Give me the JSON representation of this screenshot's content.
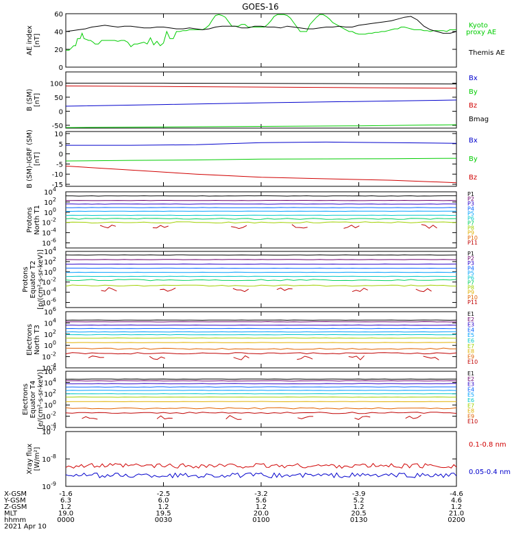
{
  "title": "GOES-16",
  "colors": {
    "black": "#000000",
    "red": "#d00000",
    "green": "#00cc00",
    "blue": "#0000cc",
    "p_channels": [
      "#000000",
      "#6b006b",
      "#2a00c8",
      "#0060ff",
      "#00a0ff",
      "#00c8c8",
      "#00d060",
      "#a0d000",
      "#e0b000",
      "#e06000",
      "#c00000"
    ],
    "e_channels": [
      "#000000",
      "#6b006b",
      "#2a00c8",
      "#0060ff",
      "#00a0ff",
      "#00c8c8",
      "#a0d000",
      "#e0b000",
      "#e06000",
      "#c00000"
    ]
  },
  "ephemeris": {
    "rows": [
      {
        "label": "X-GSM",
        "values": [
          "-1.6",
          "-2.5",
          "-3.2",
          "-3.9",
          "-4.6"
        ]
      },
      {
        "label": "Y-GSM",
        "values": [
          "6.3",
          "6.0",
          "5.6",
          "5.2",
          "4.6"
        ]
      },
      {
        "label": "Z-GSM",
        "values": [
          "1.2",
          "1.2",
          "1.2",
          "1.2",
          "1.2"
        ]
      },
      {
        "label": "MLT",
        "values": [
          "19.0",
          "19.5",
          "20.0",
          "20.5",
          "21.0"
        ]
      },
      {
        "label": "hhmm",
        "values": [
          "0000",
          "0030",
          "0100",
          "0130",
          "0200"
        ]
      }
    ],
    "date": "2021 Apr 10"
  },
  "chart_data": [
    {
      "type": "line",
      "ylabel": [
        "AE index",
        "[nT]"
      ],
      "ylim": [
        0,
        60
      ],
      "yticks": [
        "0",
        "20",
        "40",
        "60"
      ],
      "series": [
        {
          "name": "Kyoto\nproxy AE",
          "color": "green",
          "x": [
            0,
            5,
            8,
            12,
            15,
            18,
            22,
            25,
            28,
            32,
            35,
            38,
            42,
            45,
            50,
            55,
            58,
            62,
            65,
            70,
            75,
            80,
            85,
            90,
            95,
            100,
            105,
            110,
            115,
            120,
            125,
            130,
            135,
            140,
            145,
            150,
            155,
            160,
            165,
            170,
            175,
            180,
            185,
            190,
            195,
            200,
            205,
            210,
            215,
            220,
            225,
            230,
            235,
            240,
            245,
            250,
            255,
            260,
            265,
            270,
            275,
            280,
            285,
            290,
            295,
            300,
            305,
            310,
            315,
            320,
            325,
            330,
            335,
            340,
            345,
            350,
            355,
            360,
            365,
            370,
            375,
            380,
            385,
            390,
            395,
            400,
            405,
            410,
            415,
            420,
            425,
            430,
            435,
            440,
            445,
            450,
            455,
            460,
            465,
            470,
            475,
            480,
            485,
            490,
            495,
            500,
            505,
            510,
            515,
            520,
            525,
            530,
            535,
            540,
            545,
            550,
            555,
            560,
            565,
            570,
            575,
            580,
            585,
            590,
            595,
            600
          ],
          "y": [
            19,
            19,
            21,
            24,
            24,
            32,
            32,
            38,
            32,
            31,
            30,
            30,
            28,
            26,
            26,
            30,
            30,
            30,
            30,
            30,
            30,
            29,
            30,
            30,
            28,
            23,
            26,
            26,
            27,
            28,
            26,
            33,
            25,
            29,
            24,
            27,
            40,
            32,
            32,
            40,
            40,
            41,
            41,
            42,
            42,
            42,
            42,
            42,
            44,
            47,
            53,
            58,
            59,
            58,
            56,
            51,
            46,
            46,
            46,
            48,
            48,
            45,
            45,
            45,
            45,
            45,
            45,
            48,
            52,
            57,
            59,
            59,
            59,
            58,
            55,
            50,
            45,
            40,
            40,
            40,
            48,
            52,
            56,
            59,
            59,
            57,
            54,
            50,
            48,
            46,
            44,
            42,
            40,
            40,
            38,
            37,
            37,
            37,
            38,
            38,
            39,
            39,
            40,
            40,
            41,
            42,
            43,
            43,
            45,
            45,
            44,
            43,
            42,
            42,
            42,
            41,
            41,
            40,
            41,
            41,
            41,
            41,
            40,
            42,
            42,
            42
          ]
        },
        {
          "name": "Themis AE",
          "color": "black",
          "x": [
            0,
            10,
            20,
            30,
            40,
            50,
            60,
            70,
            80,
            90,
            100,
            110,
            120,
            130,
            140,
            150,
            160,
            170,
            180,
            190,
            200,
            210,
            220,
            230,
            240,
            250,
            260,
            270,
            280,
            290,
            300,
            310,
            320,
            330,
            340,
            350,
            360,
            370,
            380,
            390,
            400,
            410,
            420,
            430,
            440,
            450,
            460,
            470,
            480,
            490,
            500,
            510,
            520,
            530,
            540,
            550,
            560,
            570,
            580,
            590,
            600
          ],
          "y": [
            40,
            41,
            42,
            43,
            45,
            46,
            47,
            46,
            45,
            46,
            46,
            45,
            44,
            44,
            45,
            45,
            44,
            43,
            43,
            44,
            43,
            42,
            43,
            45,
            46,
            46,
            46,
            44,
            44,
            46,
            46,
            45,
            45,
            44,
            46,
            45,
            44,
            43,
            43,
            44,
            45,
            45,
            46,
            45,
            45,
            47,
            48,
            49,
            50,
            51,
            52,
            54,
            56,
            57,
            53,
            46,
            42,
            40,
            38,
            38,
            40
          ]
        }
      ],
      "legend": [
        "Kyoto\nproxy AE",
        "Themis AE"
      ]
    },
    {
      "type": "line",
      "ylabel": [
        "B (SM)",
        "[nT]"
      ],
      "ylim": [
        -60,
        140
      ],
      "yticks": [
        "-50",
        "0",
        "50",
        "100"
      ],
      "series": [
        {
          "name": "Bmag",
          "color": "black",
          "x": [
            0,
            150,
            300,
            450,
            600
          ],
          "y": [
            100,
            100,
            99,
            98,
            97
          ]
        },
        {
          "name": "By",
          "color": "red",
          "x": [
            0,
            150,
            300,
            450,
            600
          ],
          "y": [
            90,
            88,
            86,
            84,
            82
          ]
        },
        {
          "name": "Bz",
          "color": "blue",
          "x": [
            0,
            150,
            300,
            450,
            600
          ],
          "y": [
            18,
            24,
            30,
            35,
            40
          ]
        },
        {
          "name": "Bx",
          "color": "green",
          "x": [
            0,
            150,
            300,
            450,
            600
          ],
          "y": [
            -58,
            -56,
            -54,
            -52,
            -48
          ]
        }
      ],
      "legend": [
        "Bx",
        "By",
        "Bz",
        "Bmag"
      ]
    },
    {
      "type": "line",
      "ylabel": [
        "B (SM)-IGRF (SM)",
        "[nT]"
      ],
      "ylim": [
        -16,
        11
      ],
      "yticks": [
        "-15",
        "-10",
        "-5",
        "0",
        "5",
        "10"
      ],
      "series": [
        {
          "name": "Bx",
          "color": "blue",
          "x": [
            0,
            100,
            200,
            300,
            400,
            500,
            600
          ],
          "y": [
            4.2,
            4.2,
            4.5,
            5.5,
            5.8,
            5.5,
            5.2
          ]
        },
        {
          "name": "By",
          "color": "green",
          "x": [
            0,
            100,
            200,
            300,
            400,
            500,
            600
          ],
          "y": [
            -3.5,
            -3.2,
            -3.0,
            -2.6,
            -2.5,
            -2.4,
            -2.2
          ]
        },
        {
          "name": "Bz",
          "color": "red",
          "x": [
            0,
            100,
            200,
            300,
            400,
            500,
            600
          ],
          "y": [
            -6,
            -8,
            -10,
            -11.5,
            -12.3,
            -13.0,
            -14.2
          ]
        }
      ],
      "legend": [
        "Bx",
        "By",
        "Bz"
      ]
    },
    {
      "type": "line",
      "log": true,
      "ylabel": [
        "Protons",
        "North T1"
      ],
      "ylim": [
        -7,
        4
      ],
      "ytick_exponents": [
        4,
        2,
        0,
        -2,
        -4,
        -6
      ],
      "levels": [
        3.2,
        2.3,
        1.6,
        0.9,
        0.2,
        -0.6,
        -1.3,
        -2.0
      ],
      "legend": [
        "P1",
        "P2",
        "P3",
        "P4",
        "P5",
        "P6",
        "P7",
        "P8",
        "P9",
        "P10",
        "P11"
      ]
    },
    {
      "type": "line",
      "log": true,
      "ylabel": [
        "Protons",
        "Equator T2",
        "[p/(cm²-s-sr-keV)]"
      ],
      "ylim": [
        -7,
        4
      ],
      "ytick_exponents": [
        4,
        2,
        0,
        -2,
        -4,
        -6
      ],
      "levels": [
        3.3,
        2.4,
        1.5,
        0.7,
        -0.1,
        -0.9,
        -1.6,
        -2.7
      ],
      "legend": [
        "P1",
        "P2",
        "P3",
        "P4",
        "P5",
        "P6",
        "P7",
        "P8",
        "P9",
        "P10",
        "P11"
      ]
    },
    {
      "type": "line",
      "log": true,
      "ylabel": [
        "Electrons",
        "North T3"
      ],
      "ylim": [
        -4,
        6
      ],
      "ytick_exponents": [
        6,
        4,
        2,
        0,
        -2,
        -4
      ],
      "levels": [
        4.5,
        4.2,
        3.6,
        3.0,
        2.4,
        1.9,
        1.3,
        0.5,
        -0.6,
        -1.4
      ],
      "legend": [
        "E1",
        "E2",
        "E3",
        "E4",
        "E5",
        "E6",
        "E7",
        "E8",
        "E9",
        "E10"
      ]
    },
    {
      "type": "line",
      "log": true,
      "ylabel": [
        "Electrons",
        "Equator T4",
        "[e/(cm²-s-sr-keV)]"
      ],
      "ylim": [
        -4,
        6
      ],
      "ytick_exponents": [
        6,
        4,
        2,
        0,
        -2,
        -4
      ],
      "levels": [
        4.6,
        4.3,
        3.8,
        3.2,
        2.6,
        2.0,
        1.4,
        0.6,
        -0.6,
        -1.4
      ],
      "legend": [
        "E1",
        "E2",
        "E3",
        "E4",
        "E5",
        "E6",
        "E7",
        "E8",
        "E9",
        "E10"
      ]
    },
    {
      "type": "line",
      "log": true,
      "ylabel": [
        "Xray flux",
        "[W/m²]"
      ],
      "ylim": [
        -9,
        -7
      ],
      "ytick_exponents": [
        -7,
        -8,
        -9
      ],
      "series": [
        {
          "name": "0.1-0.8 nm",
          "color": "red",
          "level": -8.25
        },
        {
          "name": "0.05-0.4 nm",
          "color": "blue",
          "level": -8.6
        }
      ],
      "legend": [
        "0.1-0.8 nm",
        "0.05-0.4 nm"
      ]
    }
  ]
}
